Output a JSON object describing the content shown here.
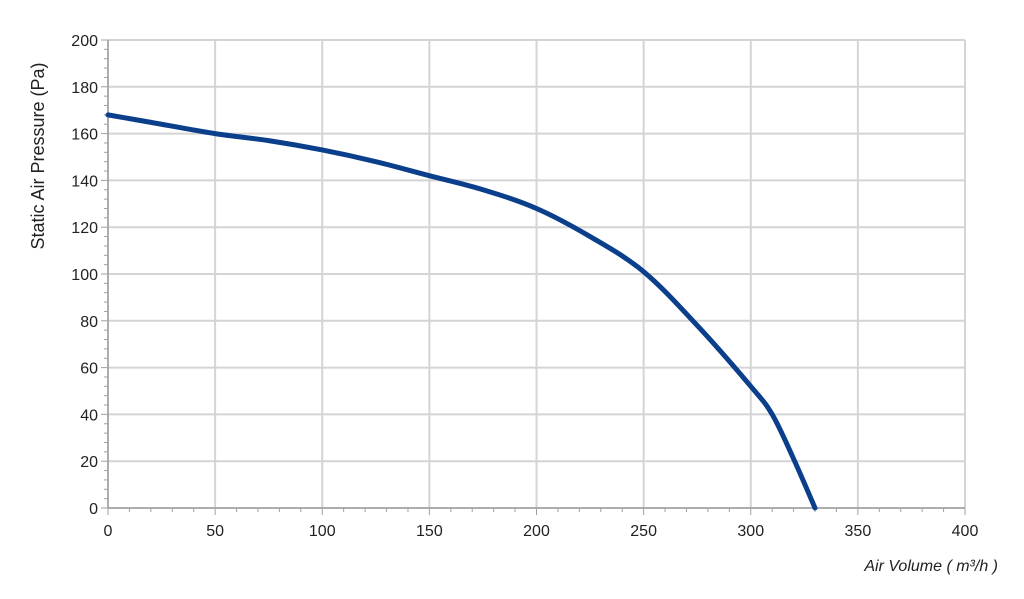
{
  "chart_data": {
    "type": "line",
    "title": "",
    "xlabel": "Air Volume ( m³/h )",
    "ylabel": "Static Air Pressure  (Pa)",
    "xlim": [
      0,
      400
    ],
    "ylim": [
      0,
      200
    ],
    "x_ticks": [
      "0",
      "50",
      "100",
      "150",
      "200",
      "250",
      "300",
      "350",
      "400"
    ],
    "y_ticks": [
      "0",
      "20",
      "40",
      "60",
      "80",
      "100",
      "120",
      "140",
      "160",
      "180",
      "200"
    ],
    "grid": true,
    "legend": "none",
    "series": [
      {
        "color": "#0b3f8c",
        "x": [
          0,
          25,
          50,
          75,
          100,
          125,
          150,
          175,
          200,
          225,
          250,
          275,
          300,
          310,
          320,
          330
        ],
        "y": [
          168,
          164,
          160,
          157,
          153,
          148,
          142,
          136,
          128,
          116,
          101,
          78,
          52,
          40,
          21,
          0
        ]
      }
    ]
  },
  "colors": {
    "grid": "#d4d4d4",
    "axis": "#a0a0a0",
    "line": "#0b3f8c"
  }
}
